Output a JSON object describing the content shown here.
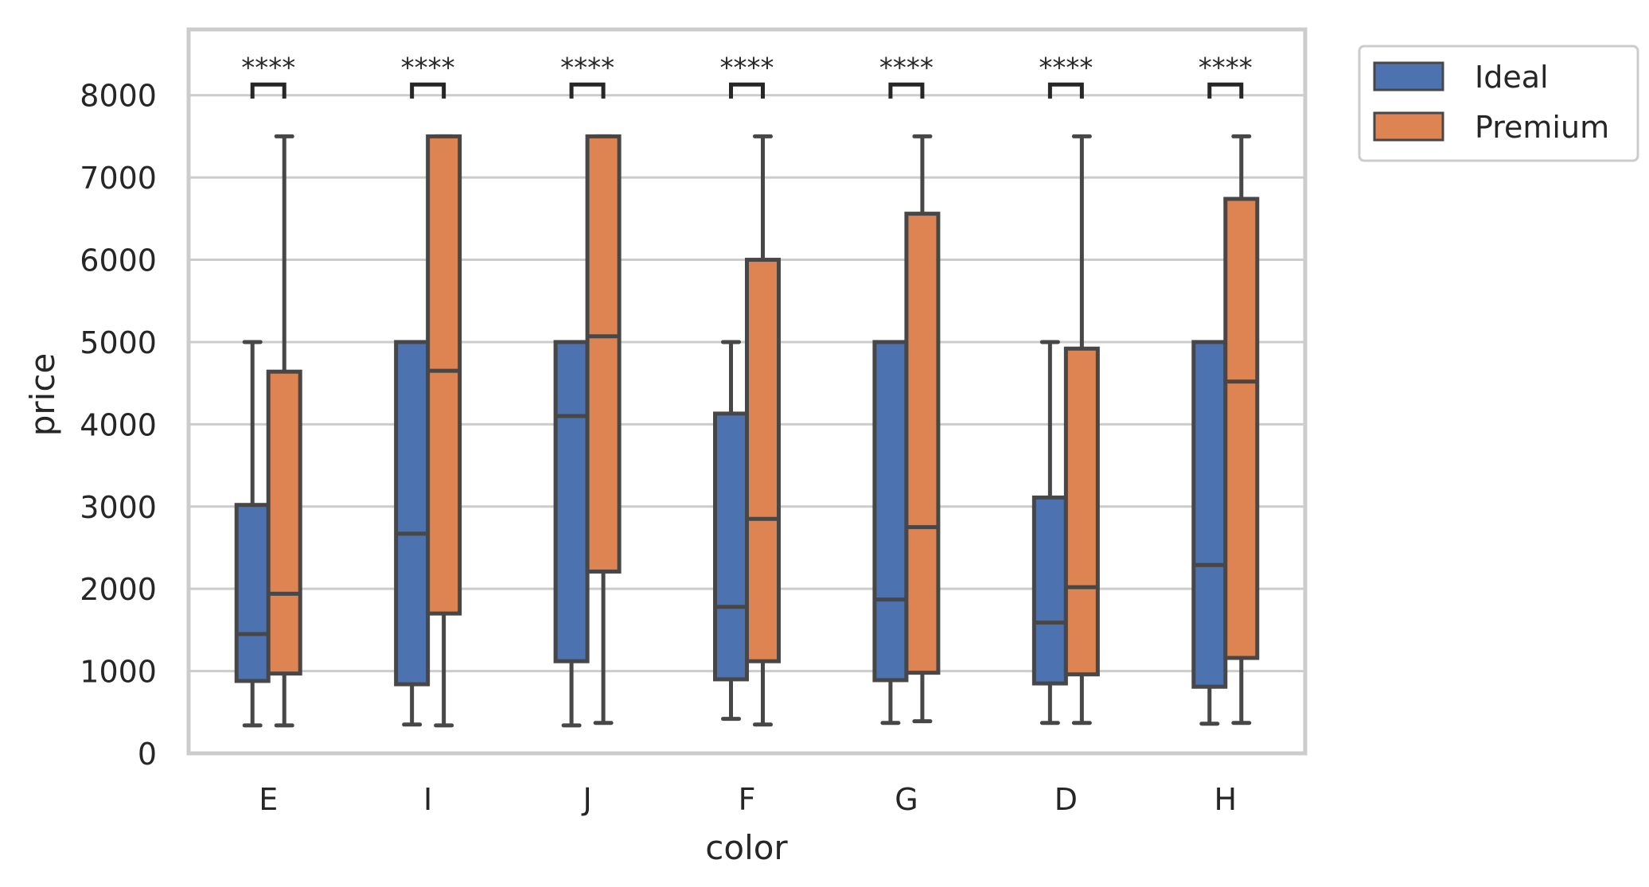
{
  "chart_data": {
    "type": "box",
    "xlabel": "color",
    "ylabel": "price",
    "categories": [
      "E",
      "I",
      "J",
      "F",
      "G",
      "D",
      "H"
    ],
    "ylim": [
      0,
      8800
    ],
    "yticks": [
      0,
      1000,
      2000,
      3000,
      4000,
      5000,
      6000,
      7000,
      8000
    ],
    "grid": "horizontal",
    "legend_position": "outside-top-right",
    "series": [
      {
        "name": "Ideal",
        "color": "#4c72b0",
        "boxes": [
          {
            "whisker_low": 340,
            "q1": 880,
            "median": 1450,
            "q3": 3020,
            "whisker_high": 5000
          },
          {
            "whisker_low": 350,
            "q1": 840,
            "median": 2670,
            "q3": 5000,
            "whisker_high": 5000
          },
          {
            "whisker_low": 340,
            "q1": 1120,
            "median": 4100,
            "q3": 5000,
            "whisker_high": 5000
          },
          {
            "whisker_low": 420,
            "q1": 900,
            "median": 1780,
            "q3": 4130,
            "whisker_high": 5000
          },
          {
            "whisker_low": 370,
            "q1": 890,
            "median": 1870,
            "q3": 5000,
            "whisker_high": 5000
          },
          {
            "whisker_low": 370,
            "q1": 850,
            "median": 1590,
            "q3": 3110,
            "whisker_high": 5000
          },
          {
            "whisker_low": 360,
            "q1": 810,
            "median": 2290,
            "q3": 5000,
            "whisker_high": 5000
          }
        ]
      },
      {
        "name": "Premium",
        "color": "#dd8452",
        "boxes": [
          {
            "whisker_low": 340,
            "q1": 970,
            "median": 1940,
            "q3": 4640,
            "whisker_high": 7500
          },
          {
            "whisker_low": 340,
            "q1": 1700,
            "median": 4650,
            "q3": 7500,
            "whisker_high": 7500
          },
          {
            "whisker_low": 370,
            "q1": 2210,
            "median": 5070,
            "q3": 7500,
            "whisker_high": 7500
          },
          {
            "whisker_low": 350,
            "q1": 1120,
            "median": 2850,
            "q3": 6000,
            "whisker_high": 7500
          },
          {
            "whisker_low": 390,
            "q1": 980,
            "median": 2750,
            "q3": 6560,
            "whisker_high": 7500
          },
          {
            "whisker_low": 370,
            "q1": 960,
            "median": 2020,
            "q3": 4920,
            "whisker_high": 7500
          },
          {
            "whisker_low": 370,
            "q1": 1160,
            "median": 4520,
            "q3": 6740,
            "whisker_high": 7500
          }
        ]
      }
    ],
    "annotations": {
      "text": "****",
      "bracket_top": 8130,
      "bracket_bottom": 7960
    }
  }
}
